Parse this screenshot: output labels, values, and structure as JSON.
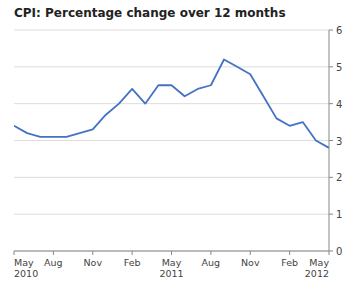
{
  "chart_data": {
    "type": "line",
    "title": "CPI: Percentage change over 12 months",
    "categories": [
      "May\n2010",
      null,
      null,
      "Aug",
      null,
      null,
      "Nov",
      null,
      null,
      "Feb",
      null,
      null,
      "May\n2011",
      null,
      null,
      "Aug",
      null,
      null,
      "Nov",
      null,
      null,
      "Feb",
      null,
      null,
      "May\n2012"
    ],
    "values": [
      3.4,
      3.2,
      3.1,
      3.1,
      3.1,
      3.2,
      3.3,
      3.7,
      4.0,
      4.4,
      4.0,
      4.5,
      4.5,
      4.2,
      4.4,
      4.5,
      5.2,
      5.0,
      4.8,
      4.2,
      3.6,
      3.4,
      3.5,
      3.0,
      2.8
    ],
    "color": "#4472C4",
    "ylim": [
      0,
      6
    ],
    "yticks": [
      0,
      1,
      2,
      3,
      4,
      5,
      6
    ],
    "grid": true
  }
}
